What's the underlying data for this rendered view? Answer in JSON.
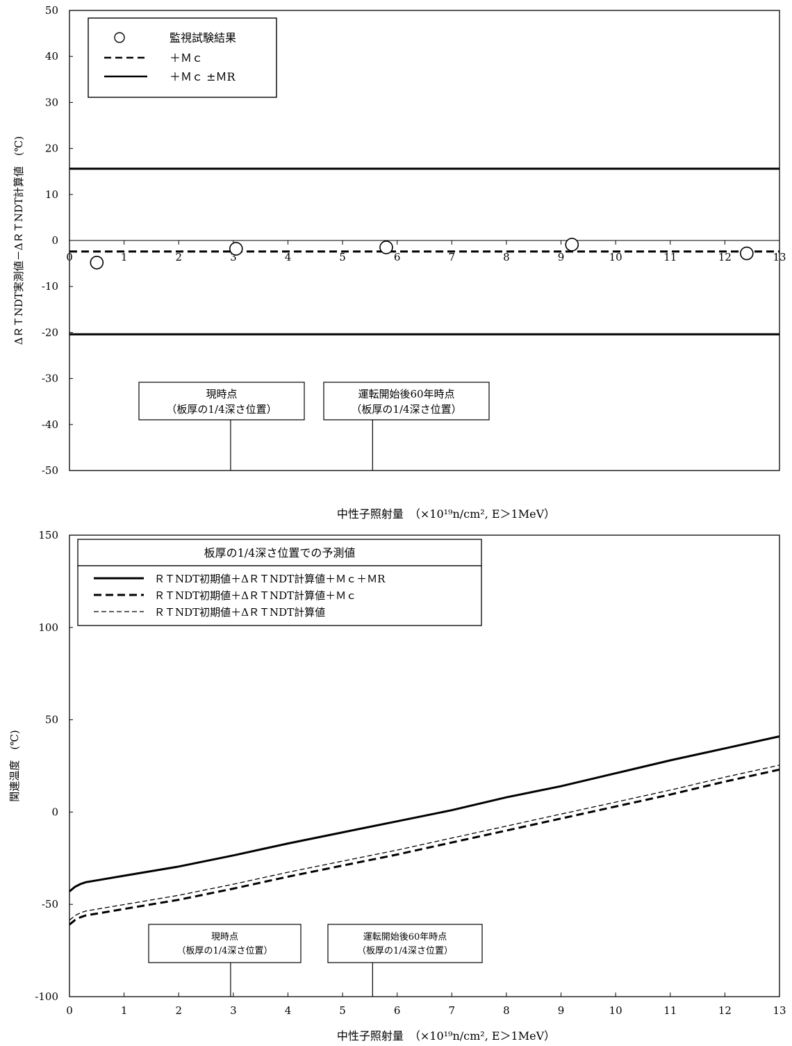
{
  "chart_data": [
    {
      "type": "scatter",
      "xlabel": "中性子照射量　（×10¹⁹n/cm², E＞1MeV）",
      "ylabel": "ΔＲＴNDT実測値－ΔＲＴNDT計算値　(℃)",
      "xlim": [
        0,
        13
      ],
      "ylim": [
        -50,
        50
      ],
      "x_ticks": [
        "0",
        "1",
        "2",
        "3",
        "4",
        "5",
        "6",
        "7",
        "8",
        "9",
        "10",
        "11",
        "12",
        "13"
      ],
      "y_ticks": [
        "50",
        "40",
        "30",
        "20",
        "10",
        "0",
        "-10",
        "-20",
        "-30",
        "-40",
        "-50"
      ],
      "legend_position": "top-left",
      "legend": [
        {
          "symbol": "circle",
          "label": "監視試験結果"
        },
        {
          "symbol": "dashed",
          "label": "＋Ｍｃ"
        },
        {
          "symbol": "solid",
          "label": "＋Ｍｃ ±ＭR"
        }
      ],
      "points": [
        {
          "x": 0.5,
          "y": -4.8
        },
        {
          "x": 3.05,
          "y": -1.8
        },
        {
          "x": 5.8,
          "y": -1.5
        },
        {
          "x": 9.2,
          "y": -0.9
        },
        {
          "x": 12.4,
          "y": -2.8
        }
      ],
      "mc": -2.4,
      "mc_plus_mr": 15.6,
      "mc_minus_mr": -20.4,
      "annotations": [
        {
          "x": 2.95,
          "line1": "現時点",
          "line2": "（板厚の1/4深さ位置）"
        },
        {
          "x": 5.55,
          "line1": "運転開始後60年時点",
          "line2": "（板厚の1/4深さ位置）"
        }
      ]
    },
    {
      "type": "line",
      "xlabel": "中性子照射量　（×10¹⁹n/cm², E＞1MeV）",
      "ylabel": "関連温度　(℃)",
      "xlim": [
        0,
        13
      ],
      "ylim": [
        -100,
        150
      ],
      "x_ticks": [
        "0",
        "1",
        "2",
        "3",
        "4",
        "5",
        "6",
        "7",
        "8",
        "9",
        "10",
        "11",
        "12",
        "13"
      ],
      "y_ticks": [
        "150",
        "100",
        "50",
        "0",
        "-50",
        "-100"
      ],
      "legend_position": "top-left",
      "legend_title": "板厚の1/4深さ位置での予測値",
      "series": [
        {
          "name": "ＲＴNDT初期値＋ΔＲＴNDT計算値＋Ｍｃ＋ＭR",
          "style": "solid",
          "x": [
            0,
            0.1,
            0.2,
            0.3,
            0.5,
            1,
            2,
            3,
            4,
            5,
            6,
            7,
            8,
            9,
            10,
            11,
            12,
            13
          ],
          "values": [
            -43,
            -40.5,
            -39,
            -38,
            -37,
            -34.5,
            -29.5,
            -23.5,
            -17,
            -11,
            -5,
            1,
            8,
            14,
            21,
            28,
            34.5,
            41
          ]
        },
        {
          "name": "ＲＴNDT初期値＋ΔＲＴNDT計算値＋Ｍｃ",
          "style": "bold-dashed",
          "x": [
            0,
            0.1,
            0.2,
            0.3,
            0.5,
            1,
            2,
            3,
            4,
            5,
            6,
            7,
            8,
            9,
            10,
            11,
            12,
            13
          ],
          "values": [
            -61,
            -58.5,
            -57,
            -56,
            -55,
            -52.5,
            -47.5,
            -41.5,
            -35,
            -29,
            -23,
            -16.5,
            -10,
            -3.5,
            3,
            9.5,
            16.5,
            23
          ]
        },
        {
          "name": "ＲＴNDT初期値＋ΔＲＴNDT計算値",
          "style": "thin-dashed",
          "x": [
            0,
            0.1,
            0.2,
            0.3,
            0.5,
            1,
            2,
            3,
            4,
            5,
            6,
            7,
            8,
            9,
            10,
            11,
            12,
            13
          ],
          "values": [
            -58.6,
            -56.1,
            -54.6,
            -53.6,
            -52.6,
            -50.1,
            -45.1,
            -39.1,
            -32.6,
            -26.6,
            -20.6,
            -14.1,
            -7.6,
            -1.1,
            5.4,
            11.9,
            18.9,
            25.4
          ]
        }
      ],
      "annotations": [
        {
          "x": 2.95,
          "line1": "現時点",
          "line2": "（板厚の1/4深さ位置）"
        },
        {
          "x": 5.55,
          "line1": "運転開始後60年時点",
          "line2": "（板厚の1/4深さ位置）"
        }
      ]
    }
  ]
}
